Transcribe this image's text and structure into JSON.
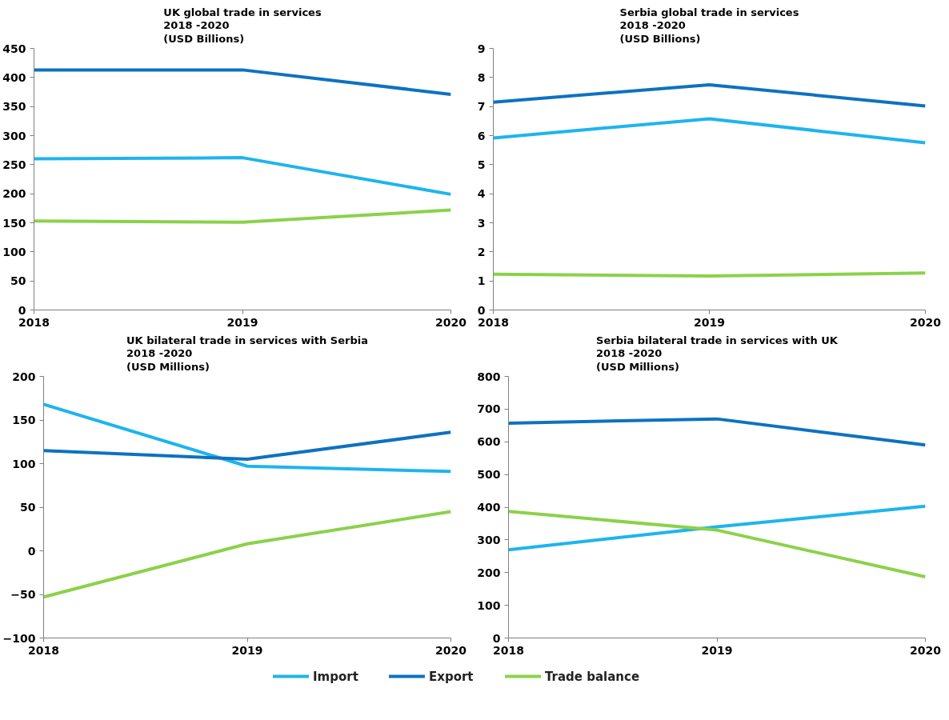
{
  "chart_data": [
    {
      "type": "line",
      "title": "UK global trade in services\n2018 -2020\n(USD Billions)",
      "x": [
        2018,
        2019,
        2020
      ],
      "xlim": [
        2018,
        2020
      ],
      "xticks": [
        2018,
        2019,
        2020
      ],
      "ylim": [
        0,
        450
      ],
      "yticks": [
        0,
        50,
        100,
        150,
        200,
        250,
        300,
        350,
        400,
        450
      ],
      "grid": false,
      "series": [
        {
          "color": "#1eb4ee",
          "values": [
            260,
            262,
            199
          ]
        },
        {
          "color": "#0d72c0",
          "values": [
            413,
            413,
            371
          ]
        },
        {
          "color": "#8cd14a",
          "values": [
            153,
            151,
            172
          ]
        }
      ]
    },
    {
      "type": "line",
      "title": "Serbia global trade in services\n2018 -2020\n(USD Billions)",
      "x": [
        2018,
        2019,
        2020
      ],
      "xlim": [
        2018,
        2020
      ],
      "xticks": [
        2018,
        2019,
        2020
      ],
      "ylim": [
        0,
        9
      ],
      "yticks": [
        0,
        1,
        2,
        3,
        4,
        5,
        6,
        7,
        8,
        9
      ],
      "grid": false,
      "series": [
        {
          "color": "#1eb4ee",
          "values": [
            5.92,
            6.58,
            5.75
          ]
        },
        {
          "color": "#0d72c0",
          "values": [
            7.15,
            7.75,
            7.02
          ]
        },
        {
          "color": "#8cd14a",
          "values": [
            1.23,
            1.17,
            1.27
          ]
        }
      ]
    },
    {
      "type": "line",
      "title": "UK bilateral trade in services with Serbia\n2018 -2020\n(USD Millions)",
      "x": [
        2018,
        2019,
        2020
      ],
      "xlim": [
        2018,
        2020
      ],
      "xticks": [
        2018,
        2019,
        2020
      ],
      "ylim": [
        -100,
        200
      ],
      "yticks": [
        -100,
        -50,
        0,
        50,
        100,
        150,
        200
      ],
      "grid": false,
      "series": [
        {
          "color": "#1eb4ee",
          "values": [
            168,
            97,
            91
          ]
        },
        {
          "color": "#0d72c0",
          "values": [
            115,
            105,
            136
          ]
        },
        {
          "color": "#8cd14a",
          "values": [
            -53,
            8,
            45
          ]
        }
      ]
    },
    {
      "type": "line",
      "title": "Serbia bilateral trade in services with UK\n2018 -2020\n(USD Millions)",
      "x": [
        2018,
        2019,
        2020
      ],
      "xlim": [
        2018,
        2020
      ],
      "xticks": [
        2018,
        2019,
        2020
      ],
      "ylim": [
        0,
        800
      ],
      "yticks": [
        0,
        100,
        200,
        300,
        400,
        500,
        600,
        700,
        800
      ],
      "grid": false,
      "legend": "bottom",
      "series": [
        {
          "name": "Import",
          "color": "#1eb4ee",
          "values": [
            270,
            340,
            403
          ]
        },
        {
          "name": "Export",
          "color": "#0d72c0",
          "values": [
            657,
            670,
            590
          ]
        },
        {
          "name": "Trade balance",
          "color": "#8cd14a",
          "values": [
            387,
            330,
            187
          ]
        }
      ]
    }
  ]
}
